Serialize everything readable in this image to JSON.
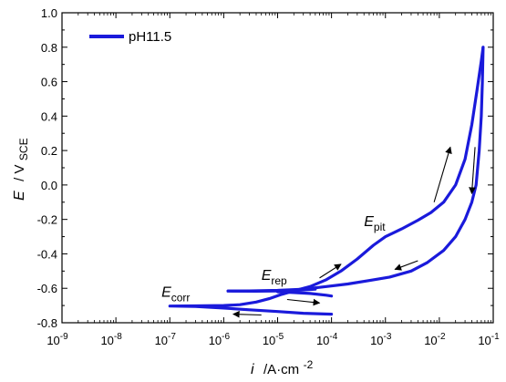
{
  "chart_data": {
    "type": "line",
    "xscale": "log",
    "xlim": [
      1e-09,
      0.1
    ],
    "ylim": [
      -0.8,
      1.0
    ],
    "x_ticks": [
      {
        "base": "10",
        "exp": "-9"
      },
      {
        "base": "10",
        "exp": "-8"
      },
      {
        "base": "10",
        "exp": "-7"
      },
      {
        "base": "10",
        "exp": "-6"
      },
      {
        "base": "10",
        "exp": "-5"
      },
      {
        "base": "10",
        "exp": "-4"
      },
      {
        "base": "10",
        "exp": "-3"
      },
      {
        "base": "10",
        "exp": "-2"
      },
      {
        "base": "10",
        "exp": "-1"
      }
    ],
    "y_ticks": [
      "1.0",
      "0.8",
      "0.6",
      "0.4",
      "0.2",
      "0.0",
      "-0.2",
      "-0.4",
      "-0.6",
      "-0.8"
    ],
    "y_tick_values": [
      1.0,
      0.8,
      0.6,
      0.4,
      0.2,
      0.0,
      -0.2,
      -0.4,
      -0.6,
      -0.8
    ],
    "xlabel": {
      "symbol": "i",
      "unit_prefix": "/A·cm",
      "unit_exp": "-2"
    },
    "ylabel": {
      "symbol": "E",
      "unit_prefix": "/ V",
      "unit_sub": "SCE"
    },
    "legend": {
      "position": "top-left",
      "color": "#1a1adb"
    },
    "series": [
      {
        "name": "pH11.5",
        "color": "#1a1adb",
        "forward": [
          [
            0.0001,
            -0.75
          ],
          [
            3e-05,
            -0.745
          ],
          [
            1e-05,
            -0.735
          ],
          [
            3e-06,
            -0.725
          ],
          [
            1e-06,
            -0.715
          ],
          [
            3e-07,
            -0.705
          ],
          [
            1e-07,
            -0.703
          ],
          [
            3e-07,
            -0.702
          ],
          [
            1e-06,
            -0.7
          ],
          [
            2e-06,
            -0.695
          ],
          [
            4e-06,
            -0.68
          ],
          [
            7e-06,
            -0.66
          ],
          [
            1.2e-05,
            -0.635
          ],
          [
            2e-05,
            -0.615
          ],
          [
            4e-05,
            -0.59
          ],
          [
            8e-05,
            -0.55
          ],
          [
            0.00015,
            -0.5
          ],
          [
            0.0003,
            -0.43
          ],
          [
            0.0006,
            -0.35
          ],
          [
            0.001,
            -0.3
          ],
          [
            0.002,
            -0.255
          ],
          [
            0.004,
            -0.205
          ],
          [
            0.007,
            -0.16
          ],
          [
            0.012,
            -0.1
          ],
          [
            0.02,
            0.0
          ],
          [
            0.03,
            0.15
          ],
          [
            0.04,
            0.35
          ],
          [
            0.05,
            0.55
          ],
          [
            0.06,
            0.72
          ],
          [
            0.065,
            0.8
          ]
        ],
        "reverse": [
          [
            0.065,
            0.8
          ],
          [
            0.063,
            0.6
          ],
          [
            0.06,
            0.4
          ],
          [
            0.055,
            0.2
          ],
          [
            0.048,
            0.0
          ],
          [
            0.04,
            -0.1
          ],
          [
            0.03,
            -0.2
          ],
          [
            0.02,
            -0.3
          ],
          [
            0.012,
            -0.38
          ],
          [
            0.006,
            -0.45
          ],
          [
            0.003,
            -0.5
          ],
          [
            0.0012,
            -0.535
          ],
          [
            0.0005,
            -0.555
          ],
          [
            0.0002,
            -0.575
          ],
          [
            8e-05,
            -0.59
          ],
          [
            3e-05,
            -0.605
          ],
          [
            1e-05,
            -0.612
          ],
          [
            3e-06,
            -0.615
          ],
          [
            1.2e-06,
            -0.616
          ]
        ],
        "branch_left": [
          [
            1.2e-06,
            -0.616
          ],
          [
            4e-06,
            -0.617
          ],
          [
            1e-05,
            -0.615
          ],
          [
            2e-05,
            -0.613
          ],
          [
            5e-05,
            -0.605
          ]
        ],
        "branch_tail": [
          [
            1e-05,
            -0.62
          ],
          [
            2e-05,
            -0.625
          ],
          [
            4e-05,
            -0.63
          ],
          [
            8e-05,
            -0.64
          ],
          [
            0.0001,
            -0.645
          ]
        ]
      }
    ],
    "annotations": [
      {
        "symbol": "E",
        "sub": "corr",
        "x": 7e-08,
        "y": -0.65
      },
      {
        "symbol": "E",
        "sub": "rep",
        "x": 5e-06,
        "y": -0.55
      },
      {
        "symbol": "E",
        "sub": "pit",
        "x": 0.0004,
        "y": -0.24
      }
    ],
    "arrows": [
      {
        "from": [
          0.008,
          -0.1
        ],
        "to": [
          0.016,
          0.22
        ]
      },
      {
        "from": [
          0.046,
          0.22
        ],
        "to": [
          0.04,
          -0.05
        ]
      },
      {
        "from": [
          6e-05,
          -0.54
        ],
        "to": [
          0.00015,
          -0.46
        ]
      },
      {
        "from": [
          0.004,
          -0.44
        ],
        "to": [
          0.0015,
          -0.49
        ]
      },
      {
        "from": [
          1.5e-05,
          -0.665
        ],
        "to": [
          6e-05,
          -0.685
        ]
      },
      {
        "from": [
          5e-06,
          -0.755
        ],
        "to": [
          1.5e-06,
          -0.75
        ]
      }
    ]
  }
}
